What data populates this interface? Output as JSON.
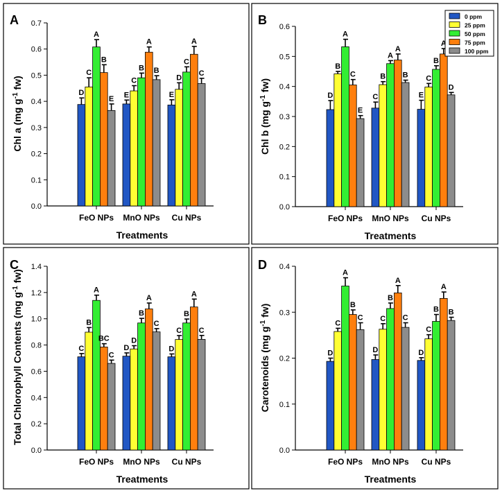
{
  "legend": {
    "entries": [
      "0 ppm",
      "25 ppm",
      "50 ppm",
      "75 ppm",
      "100 ppm"
    ],
    "colors": [
      "#2157c4",
      "#ffff33",
      "#33ee33",
      "#ff7f0e",
      "#8c8c8c"
    ]
  },
  "chart_data": [
    {
      "type": "bar",
      "panel": "A",
      "ylabel": "Chl a (mg g-1 fw)",
      "ylabel_main": "Chl a (mg g",
      "ylabel_sup": "-1",
      "ylabel_tail": " fw)",
      "xlabel": "Treatments",
      "categories": [
        "FeO NPs",
        "MnO NPs",
        "Cu NPs"
      ],
      "ylim": [
        0,
        0.7
      ],
      "yticks": [
        "0.0",
        "0.1",
        "0.2",
        "0.3",
        "0.4",
        "0.5",
        "0.6",
        "0.7"
      ],
      "series": [
        {
          "name": "0 ppm",
          "values": [
            0.388,
            0.39,
            0.386
          ],
          "errors": [
            0.025,
            0.015,
            0.02
          ],
          "letters": [
            "D",
            "E",
            "E"
          ]
        },
        {
          "name": "25 ppm",
          "values": [
            0.455,
            0.44,
            0.446
          ],
          "errors": [
            0.035,
            0.02,
            0.025
          ],
          "letters": [
            "C",
            "C",
            "D"
          ]
        },
        {
          "name": "50 ppm",
          "values": [
            0.608,
            0.49,
            0.512
          ],
          "errors": [
            0.028,
            0.018,
            0.02
          ],
          "letters": [
            "A",
            "B",
            "C"
          ]
        },
        {
          "name": "75 ppm",
          "values": [
            0.51,
            0.588,
            0.58
          ],
          "errors": [
            0.03,
            0.02,
            0.03
          ],
          "letters": [
            "B",
            "A",
            "A"
          ]
        },
        {
          "name": "100 ppm",
          "values": [
            0.365,
            0.483,
            0.468
          ],
          "errors": [
            0.025,
            0.015,
            0.02
          ],
          "letters": [
            "E",
            "B",
            "C"
          ]
        }
      ]
    },
    {
      "type": "bar",
      "panel": "B",
      "ylabel": "Chl b (mg g-1 fw)",
      "ylabel_main": "Chl b (mg g",
      "ylabel_sup": "-1",
      "ylabel_tail": " fw)",
      "xlabel": "Treatments",
      "categories": [
        "FeO NPs",
        "MnO NPs",
        "Cu NPs"
      ],
      "ylim": [
        0,
        0.6
      ],
      "yticks": [
        "0.0",
        "0.1",
        "0.2",
        "0.3",
        "0.4",
        "0.5",
        "0.6"
      ],
      "series": [
        {
          "name": "0 ppm",
          "values": [
            0.323,
            0.328,
            0.324
          ],
          "errors": [
            0.03,
            0.02,
            0.03
          ],
          "letters": [
            "D",
            "C",
            "E"
          ]
        },
        {
          "name": "25 ppm",
          "values": [
            0.442,
            0.406,
            0.398
          ],
          "errors": [
            0.008,
            0.01,
            0.012
          ],
          "letters": [
            "B",
            "B",
            "C"
          ]
        },
        {
          "name": "50 ppm",
          "values": [
            0.532,
            0.476,
            0.457
          ],
          "errors": [
            0.025,
            0.01,
            0.012
          ],
          "letters": [
            "A",
            "A",
            "B"
          ]
        },
        {
          "name": "75 ppm",
          "values": [
            0.405,
            0.488,
            0.508
          ],
          "errors": [
            0.018,
            0.02,
            0.018
          ],
          "letters": [
            "C",
            "A",
            "A"
          ]
        },
        {
          "name": "100 ppm",
          "values": [
            0.293,
            0.413,
            0.372
          ],
          "errors": [
            0.01,
            0.008,
            0.008
          ],
          "letters": [
            "E",
            "B",
            "D"
          ]
        }
      ]
    },
    {
      "type": "bar",
      "panel": "C",
      "ylabel": "Total Chlorophyll Contents (mg g-1 fw)",
      "ylabel_main": "Total Chlorophyll Contents (mg g",
      "ylabel_sup": "-1",
      "ylabel_tail": " fw)",
      "xlabel": "Treatments",
      "categories": [
        "FeO NPs",
        "MnO NPs",
        "Cu NPs"
      ],
      "ylim": [
        0,
        1.4
      ],
      "yticks": [
        "0.0",
        "0.2",
        "0.4",
        "0.6",
        "0.8",
        "1.0",
        "1.2",
        "1.4"
      ],
      "series": [
        {
          "name": "0 ppm",
          "values": [
            0.71,
            0.715,
            0.71
          ],
          "errors": [
            0.025,
            0.025,
            0.022
          ],
          "letters": [
            "C",
            "D",
            "D"
          ]
        },
        {
          "name": "25 ppm",
          "values": [
            0.898,
            0.77,
            0.842
          ],
          "errors": [
            0.035,
            0.025,
            0.03
          ],
          "letters": [
            "B",
            "D",
            "C"
          ]
        },
        {
          "name": "50 ppm",
          "values": [
            1.14,
            0.968,
            0.968
          ],
          "errors": [
            0.04,
            0.035,
            0.03
          ],
          "letters": [
            "A",
            "B",
            "B"
          ]
        },
        {
          "name": "75 ppm",
          "values": [
            0.785,
            1.075,
            1.09
          ],
          "errors": [
            0.025,
            0.045,
            0.06
          ],
          "letters": [
            "BC",
            "A",
            "A"
          ]
        },
        {
          "name": "100 ppm",
          "values": [
            0.66,
            0.9,
            0.843
          ],
          "errors": [
            0.025,
            0.025,
            0.03
          ],
          "letters": [
            "C",
            "C",
            "C"
          ]
        }
      ]
    },
    {
      "type": "bar",
      "panel": "D",
      "ylabel": "Carotenoids (mg g-1 fw)",
      "ylabel_main": "Carotenoids (mg g",
      "ylabel_sup": "-1",
      "ylabel_tail": " fw)",
      "xlabel": "Treatments",
      "categories": [
        "FeO NPs",
        "MnO NPs",
        "Cu NPs"
      ],
      "ylim": [
        0,
        0.4
      ],
      "yticks": [
        "0.0",
        "0.1",
        "0.2",
        "0.3",
        "0.4"
      ],
      "series": [
        {
          "name": "0 ppm",
          "values": [
            0.193,
            0.197,
            0.195
          ],
          "errors": [
            0.007,
            0.01,
            0.006
          ],
          "letters": [
            "D",
            "D",
            "D"
          ]
        },
        {
          "name": "25 ppm",
          "values": [
            0.258,
            0.263,
            0.242
          ],
          "errors": [
            0.007,
            0.012,
            0.009
          ],
          "letters": [
            "C",
            "C",
            "C"
          ]
        },
        {
          "name": "50 ppm",
          "values": [
            0.357,
            0.308,
            0.28
          ],
          "errors": [
            0.018,
            0.012,
            0.015
          ],
          "letters": [
            "A",
            "B",
            "B"
          ]
        },
        {
          "name": "75 ppm",
          "values": [
            0.295,
            0.342,
            0.33
          ],
          "errors": [
            0.01,
            0.016,
            0.014
          ],
          "letters": [
            "B",
            "A",
            "A"
          ]
        },
        {
          "name": "100 ppm",
          "values": [
            0.262,
            0.267,
            0.282
          ],
          "errors": [
            0.015,
            0.01,
            0.007
          ],
          "letters": [
            "C",
            "C",
            "B"
          ]
        }
      ]
    }
  ]
}
